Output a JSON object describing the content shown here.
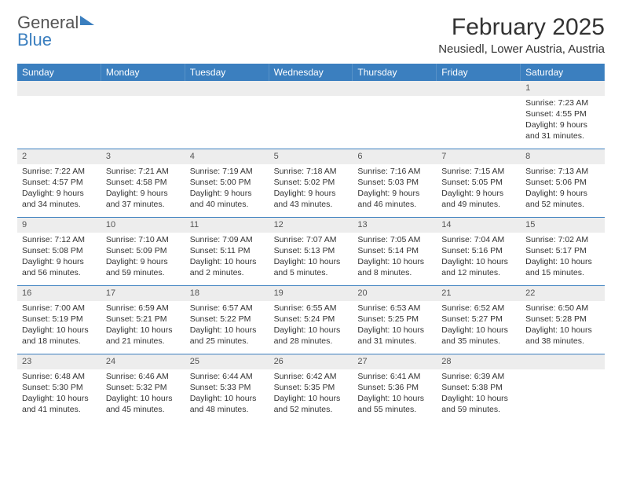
{
  "header": {
    "logo_general": "General",
    "logo_blue": "Blue",
    "month_title": "February 2025",
    "location": "Neusiedl, Lower Austria, Austria"
  },
  "colors": {
    "accent": "#3b7fbf",
    "daynum_bg": "#ededed",
    "text": "#333333"
  },
  "days_of_week": [
    "Sunday",
    "Monday",
    "Tuesday",
    "Wednesday",
    "Thursday",
    "Friday",
    "Saturday"
  ],
  "weeks": [
    [
      null,
      null,
      null,
      null,
      null,
      null,
      {
        "n": "1",
        "sunrise": "Sunrise: 7:23 AM",
        "sunset": "Sunset: 4:55 PM",
        "daylight": "Daylight: 9 hours and 31 minutes."
      }
    ],
    [
      {
        "n": "2",
        "sunrise": "Sunrise: 7:22 AM",
        "sunset": "Sunset: 4:57 PM",
        "daylight": "Daylight: 9 hours and 34 minutes."
      },
      {
        "n": "3",
        "sunrise": "Sunrise: 7:21 AM",
        "sunset": "Sunset: 4:58 PM",
        "daylight": "Daylight: 9 hours and 37 minutes."
      },
      {
        "n": "4",
        "sunrise": "Sunrise: 7:19 AM",
        "sunset": "Sunset: 5:00 PM",
        "daylight": "Daylight: 9 hours and 40 minutes."
      },
      {
        "n": "5",
        "sunrise": "Sunrise: 7:18 AM",
        "sunset": "Sunset: 5:02 PM",
        "daylight": "Daylight: 9 hours and 43 minutes."
      },
      {
        "n": "6",
        "sunrise": "Sunrise: 7:16 AM",
        "sunset": "Sunset: 5:03 PM",
        "daylight": "Daylight: 9 hours and 46 minutes."
      },
      {
        "n": "7",
        "sunrise": "Sunrise: 7:15 AM",
        "sunset": "Sunset: 5:05 PM",
        "daylight": "Daylight: 9 hours and 49 minutes."
      },
      {
        "n": "8",
        "sunrise": "Sunrise: 7:13 AM",
        "sunset": "Sunset: 5:06 PM",
        "daylight": "Daylight: 9 hours and 52 minutes."
      }
    ],
    [
      {
        "n": "9",
        "sunrise": "Sunrise: 7:12 AM",
        "sunset": "Sunset: 5:08 PM",
        "daylight": "Daylight: 9 hours and 56 minutes."
      },
      {
        "n": "10",
        "sunrise": "Sunrise: 7:10 AM",
        "sunset": "Sunset: 5:09 PM",
        "daylight": "Daylight: 9 hours and 59 minutes."
      },
      {
        "n": "11",
        "sunrise": "Sunrise: 7:09 AM",
        "sunset": "Sunset: 5:11 PM",
        "daylight": "Daylight: 10 hours and 2 minutes."
      },
      {
        "n": "12",
        "sunrise": "Sunrise: 7:07 AM",
        "sunset": "Sunset: 5:13 PM",
        "daylight": "Daylight: 10 hours and 5 minutes."
      },
      {
        "n": "13",
        "sunrise": "Sunrise: 7:05 AM",
        "sunset": "Sunset: 5:14 PM",
        "daylight": "Daylight: 10 hours and 8 minutes."
      },
      {
        "n": "14",
        "sunrise": "Sunrise: 7:04 AM",
        "sunset": "Sunset: 5:16 PM",
        "daylight": "Daylight: 10 hours and 12 minutes."
      },
      {
        "n": "15",
        "sunrise": "Sunrise: 7:02 AM",
        "sunset": "Sunset: 5:17 PM",
        "daylight": "Daylight: 10 hours and 15 minutes."
      }
    ],
    [
      {
        "n": "16",
        "sunrise": "Sunrise: 7:00 AM",
        "sunset": "Sunset: 5:19 PM",
        "daylight": "Daylight: 10 hours and 18 minutes."
      },
      {
        "n": "17",
        "sunrise": "Sunrise: 6:59 AM",
        "sunset": "Sunset: 5:21 PM",
        "daylight": "Daylight: 10 hours and 21 minutes."
      },
      {
        "n": "18",
        "sunrise": "Sunrise: 6:57 AM",
        "sunset": "Sunset: 5:22 PM",
        "daylight": "Daylight: 10 hours and 25 minutes."
      },
      {
        "n": "19",
        "sunrise": "Sunrise: 6:55 AM",
        "sunset": "Sunset: 5:24 PM",
        "daylight": "Daylight: 10 hours and 28 minutes."
      },
      {
        "n": "20",
        "sunrise": "Sunrise: 6:53 AM",
        "sunset": "Sunset: 5:25 PM",
        "daylight": "Daylight: 10 hours and 31 minutes."
      },
      {
        "n": "21",
        "sunrise": "Sunrise: 6:52 AM",
        "sunset": "Sunset: 5:27 PM",
        "daylight": "Daylight: 10 hours and 35 minutes."
      },
      {
        "n": "22",
        "sunrise": "Sunrise: 6:50 AM",
        "sunset": "Sunset: 5:28 PM",
        "daylight": "Daylight: 10 hours and 38 minutes."
      }
    ],
    [
      {
        "n": "23",
        "sunrise": "Sunrise: 6:48 AM",
        "sunset": "Sunset: 5:30 PM",
        "daylight": "Daylight: 10 hours and 41 minutes."
      },
      {
        "n": "24",
        "sunrise": "Sunrise: 6:46 AM",
        "sunset": "Sunset: 5:32 PM",
        "daylight": "Daylight: 10 hours and 45 minutes."
      },
      {
        "n": "25",
        "sunrise": "Sunrise: 6:44 AM",
        "sunset": "Sunset: 5:33 PM",
        "daylight": "Daylight: 10 hours and 48 minutes."
      },
      {
        "n": "26",
        "sunrise": "Sunrise: 6:42 AM",
        "sunset": "Sunset: 5:35 PM",
        "daylight": "Daylight: 10 hours and 52 minutes."
      },
      {
        "n": "27",
        "sunrise": "Sunrise: 6:41 AM",
        "sunset": "Sunset: 5:36 PM",
        "daylight": "Daylight: 10 hours and 55 minutes."
      },
      {
        "n": "28",
        "sunrise": "Sunrise: 6:39 AM",
        "sunset": "Sunset: 5:38 PM",
        "daylight": "Daylight: 10 hours and 59 minutes."
      },
      null
    ]
  ]
}
